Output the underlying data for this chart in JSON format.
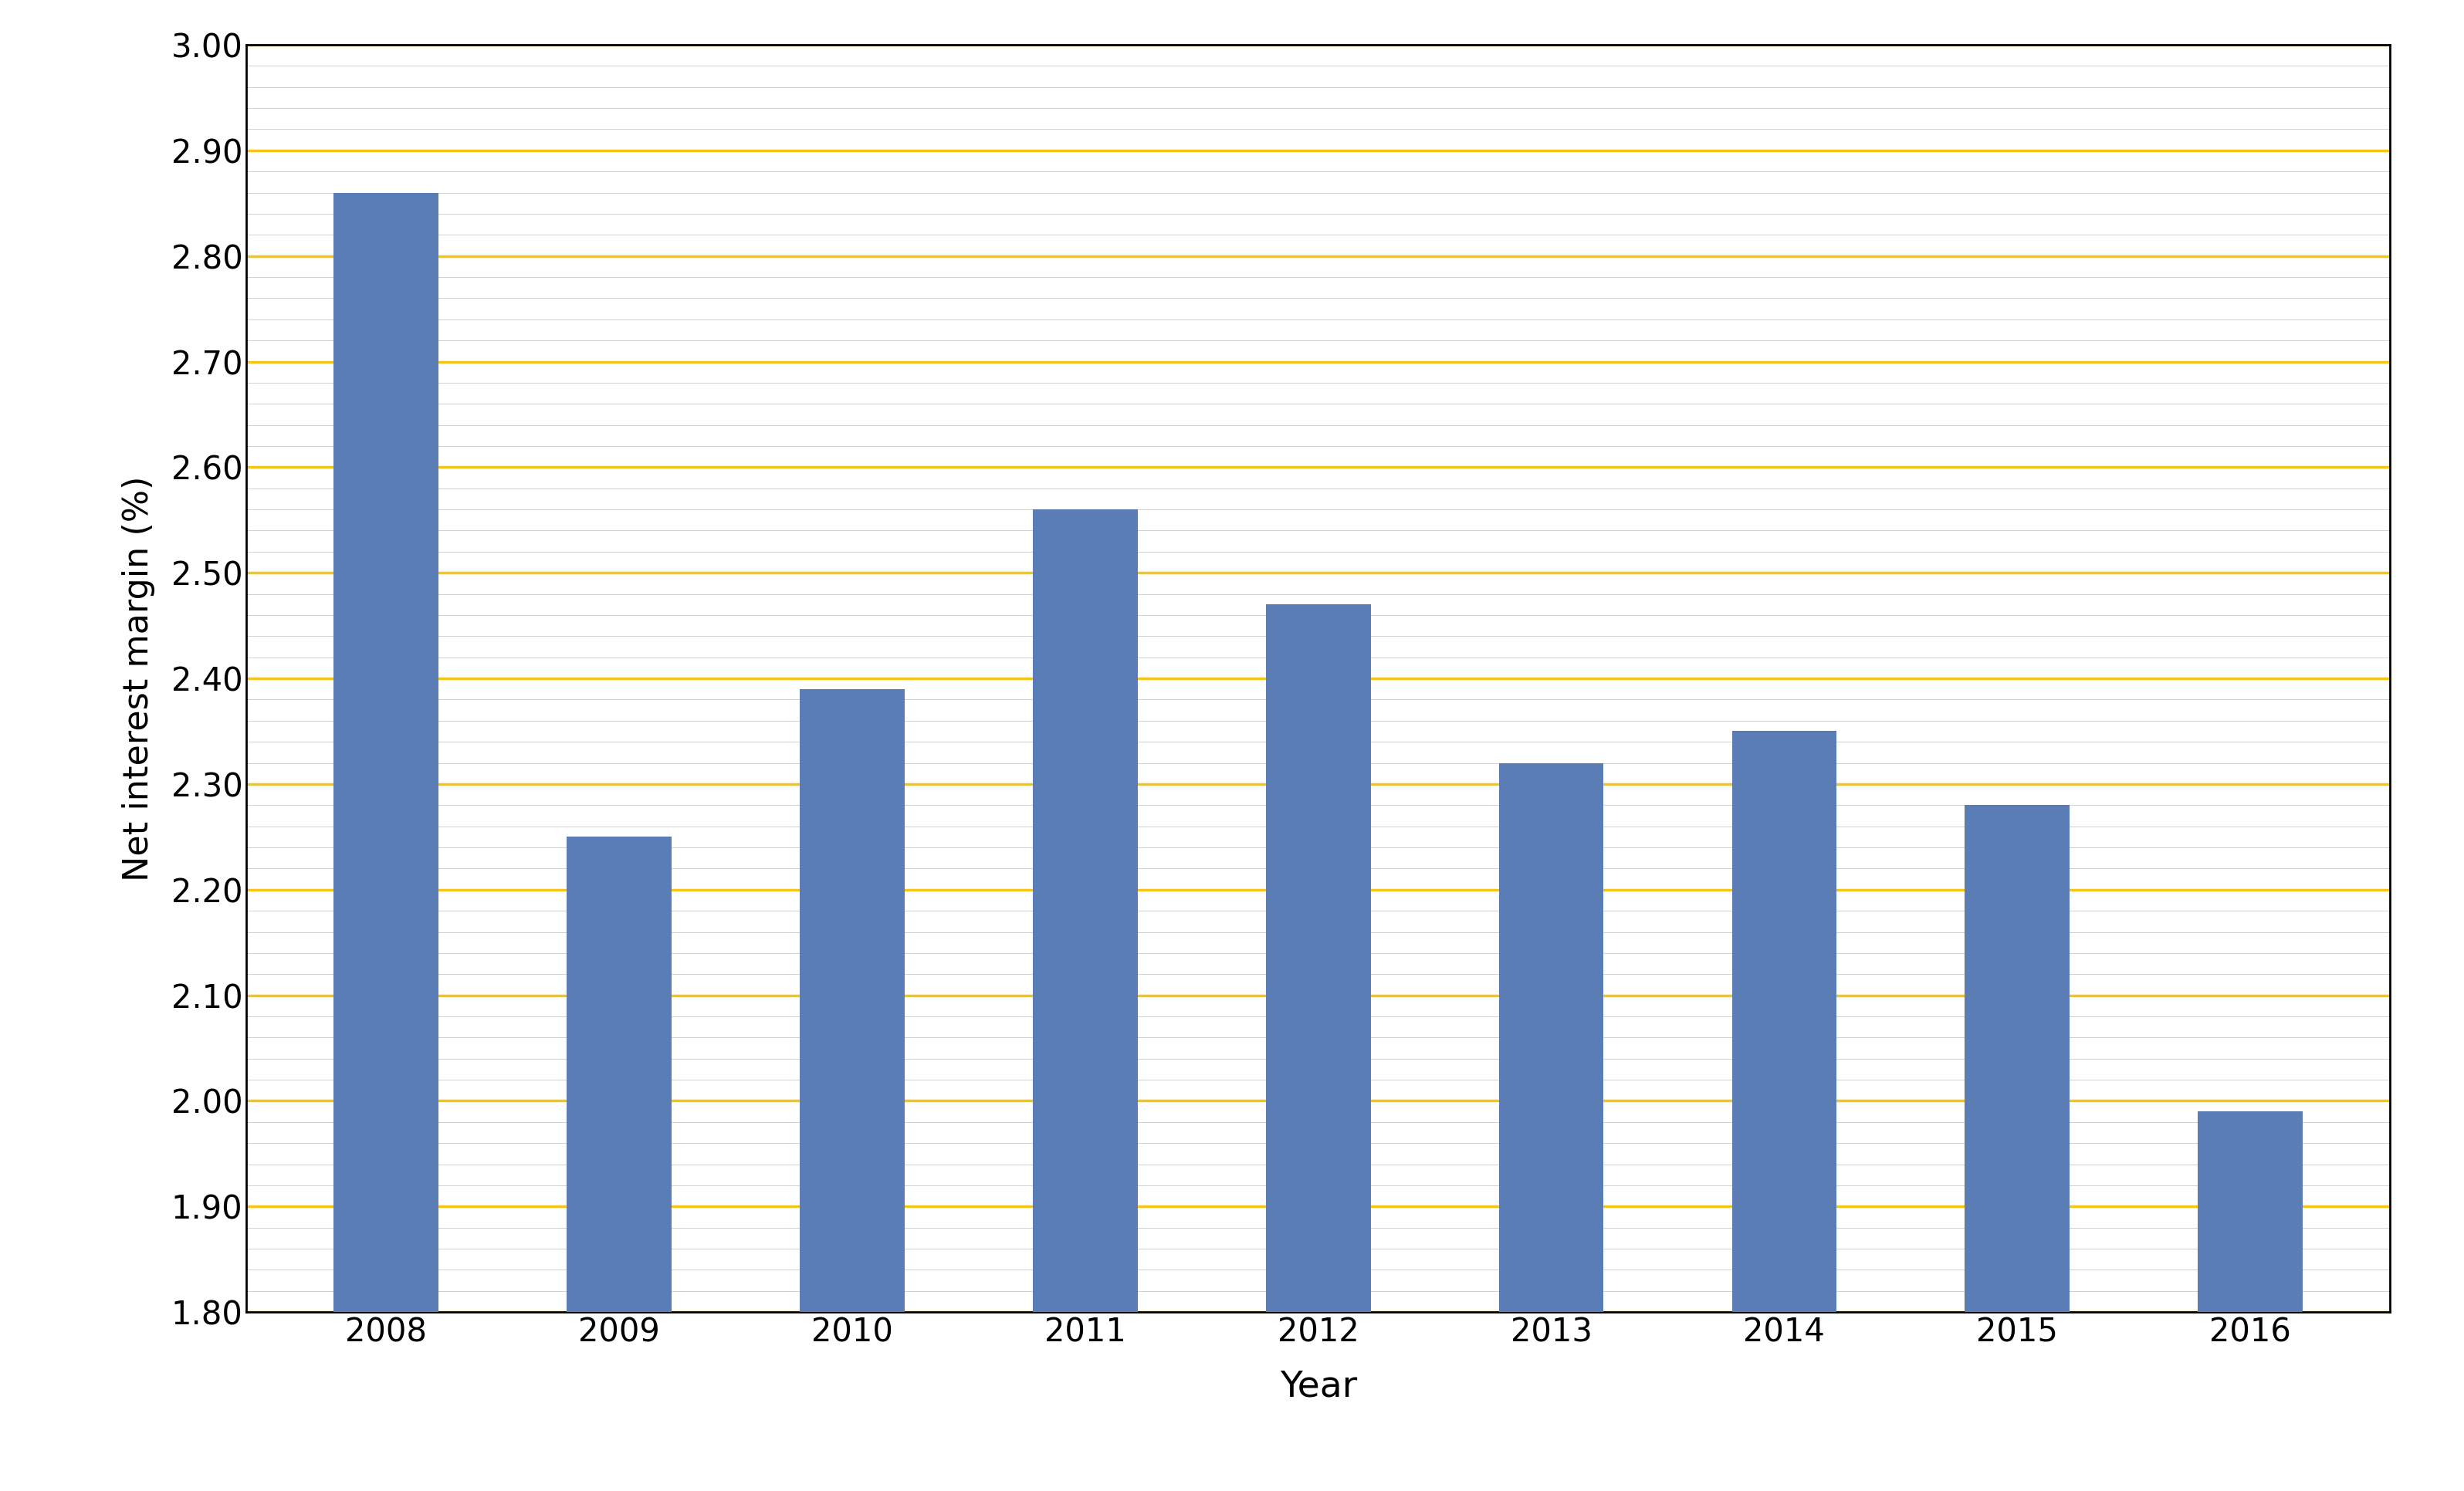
{
  "years": [
    "2008",
    "2009",
    "2010",
    "2011",
    "2012",
    "2013",
    "2014",
    "2015",
    "2016"
  ],
  "values": [
    2.86,
    2.25,
    2.39,
    2.56,
    2.47,
    2.32,
    2.35,
    2.28,
    1.99
  ],
  "bar_color": "#5a7db5",
  "ylim": [
    1.8,
    3.0
  ],
  "yticks": [
    1.8,
    1.9,
    2.0,
    2.1,
    2.2,
    2.3,
    2.4,
    2.5,
    2.6,
    2.7,
    2.8,
    2.9,
    3.0
  ],
  "xlabel": "Year",
  "ylabel": "Net interest margin (%)",
  "xlabel_fontsize": 34,
  "ylabel_fontsize": 32,
  "tick_fontsize": 30,
  "background_color": "#ffffff",
  "grid_yellow": "#f5c518",
  "grid_gray": "#d0d0d0",
  "border_color": "#000000",
  "figure_border_color": "#1a1a1a",
  "bar_width": 0.45
}
